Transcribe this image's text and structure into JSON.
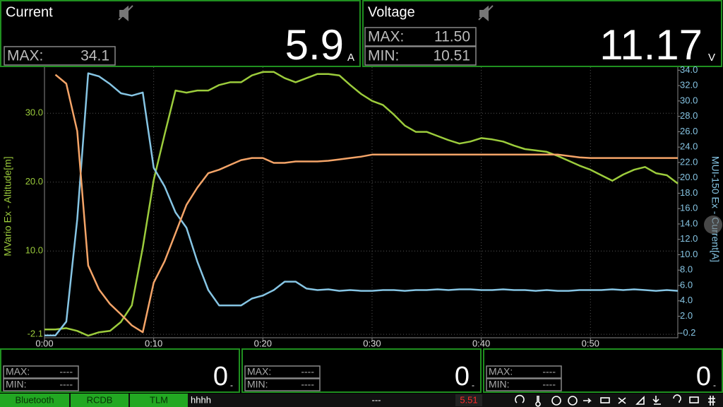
{
  "top_panels": [
    {
      "title": "Current",
      "max_label": "MAX:",
      "max": "34.1",
      "value": "5.9",
      "unit": "A"
    },
    {
      "title": "Voltage",
      "max_label": "MAX:",
      "max": "11.50",
      "min_label": "MIN:",
      "min": "10.51",
      "value": "11.17",
      "unit": "V"
    }
  ],
  "chart_data": {
    "type": "line",
    "y_label": "MVario Ex - Altitude[m]",
    "y2_label": "MUI-150 Ex - Current[A]",
    "x": [
      0,
      1,
      2,
      3,
      4,
      5,
      6,
      7,
      8,
      9,
      10,
      11,
      12,
      13,
      14,
      15,
      16,
      17,
      18,
      19,
      20,
      21,
      22,
      23,
      24,
      25,
      26,
      27,
      28,
      29,
      30,
      31,
      32,
      33,
      34,
      35,
      36,
      37,
      38,
      39,
      40,
      41,
      42,
      43,
      44,
      45,
      46,
      47,
      48,
      49,
      50,
      51,
      52,
      53,
      54,
      55,
      56,
      57,
      58
    ],
    "xlim": [
      0,
      58
    ],
    "xticks": [
      {
        "value": 0,
        "label": "0:00"
      },
      {
        "value": 10,
        "label": "0:10"
      },
      {
        "value": 20,
        "label": "0:20"
      },
      {
        "value": 30,
        "label": "0:30"
      },
      {
        "value": 40,
        "label": "0:40"
      },
      {
        "value": 50,
        "label": "0:50"
      }
    ],
    "ylim": [
      -2.6,
      36.7
    ],
    "yticks": [
      -2.1,
      {
        "value": 10,
        "label": "10.0"
      },
      {
        "value": 20,
        "label": "20.0"
      },
      {
        "value": 30,
        "label": "30.0"
      }
    ],
    "y2lim": [
      -0.8,
      34.4
    ],
    "y2ticks": [
      -0.2,
      {
        "value": 2,
        "label": "2.0"
      },
      {
        "value": 4,
        "label": "4.0"
      },
      {
        "value": 6,
        "label": "6.0"
      },
      {
        "value": 8,
        "label": "8.0"
      },
      {
        "value": 10,
        "label": "10.0"
      },
      {
        "value": 12,
        "label": "12.0"
      },
      {
        "value": 14,
        "label": "14.0"
      },
      {
        "value": 16,
        "label": "16.0"
      },
      {
        "value": 18,
        "label": "18.0"
      },
      {
        "value": 20,
        "label": "20.0"
      },
      {
        "value": 22,
        "label": "22.0"
      },
      {
        "value": 24,
        "label": "24.0"
      },
      {
        "value": 26,
        "label": "26.0"
      },
      {
        "value": 28,
        "label": "28.0"
      },
      {
        "value": 30,
        "label": "30.0"
      },
      {
        "value": 32,
        "label": "32.0"
      },
      {
        "value": 34,
        "label": "34.0"
      }
    ],
    "grid": true,
    "y_color": "#9ccc3c",
    "y2_color": "#86c5e4",
    "series": [
      {
        "color": "#9ccc3c",
        "axis": "y",
        "values": [
          -1.4,
          -1.4,
          -1.2,
          -1.6,
          -2.3,
          -1.8,
          -1.6,
          -0.3,
          2.1,
          10.5,
          20.3,
          26.9,
          33.3,
          33.0,
          33.3,
          33.3,
          34.1,
          34.5,
          34.5,
          35.5,
          36.0,
          36.0,
          35.1,
          34.5,
          35.1,
          35.7,
          35.7,
          35.5,
          34.1,
          32.8,
          31.8,
          31.2,
          29.8,
          28.2,
          27.3,
          27.3,
          26.7,
          26.1,
          25.6,
          25.9,
          26.4,
          26.2,
          25.9,
          25.3,
          24.8,
          24.6,
          24.4,
          23.8,
          23.1,
          22.4,
          21.8,
          21.0,
          20.2,
          21.1,
          21.8,
          22.2,
          21.3,
          21.0,
          19.8
        ]
      },
      {
        "color": "#86c5e4",
        "axis": "y2",
        "values": [
          -0.5,
          -0.5,
          1.3,
          14.6,
          33.6,
          33.2,
          32.2,
          31.0,
          30.7,
          31.1,
          21.3,
          18.9,
          15.5,
          13.5,
          9.1,
          5.4,
          3.4,
          3.4,
          3.4,
          4.3,
          4.7,
          5.4,
          6.5,
          6.5,
          5.6,
          5.4,
          5.5,
          5.3,
          5.4,
          5.3,
          5.3,
          5.4,
          5.4,
          5.3,
          5.4,
          5.4,
          5.5,
          5.4,
          5.5,
          5.5,
          5.4,
          5.4,
          5.5,
          5.4,
          5.4,
          5.3,
          5.4,
          5.3,
          5.3,
          5.4,
          5.4,
          5.4,
          5.5,
          5.4,
          5.5,
          5.4,
          5.3,
          5.4,
          5.3
        ]
      },
      {
        "color": "#f4a468",
        "axis": "y",
        "values": [
          null,
          35.6,
          34.3,
          27.4,
          7.9,
          4.4,
          2.3,
          0.8,
          -0.8,
          -1.8,
          5.4,
          8.5,
          12.6,
          16.7,
          19.2,
          21.3,
          21.8,
          22.5,
          23.2,
          23.5,
          23.5,
          22.8,
          22.8,
          23.0,
          23.0,
          23.0,
          23.1,
          23.3,
          23.5,
          23.7,
          24.0,
          24.0,
          24.0,
          24.0,
          24.0,
          24.0,
          24.0,
          24.0,
          24.0,
          24.0,
          24.0,
          24.0,
          24.0,
          24.0,
          24.0,
          24.0,
          24.0,
          24.0,
          23.8,
          23.6,
          23.5,
          23.5,
          23.5,
          23.5,
          23.5,
          23.5,
          23.5,
          23.5,
          23.5
        ]
      }
    ]
  },
  "bottom_panels": [
    {
      "max_label": "MAX:",
      "max": "----",
      "min_label": "MIN:",
      "min": "----",
      "value": "0",
      "unit": "-"
    },
    {
      "max_label": "MAX:",
      "max": "----",
      "min_label": "MIN:",
      "min": "----",
      "value": "0",
      "unit": "-"
    },
    {
      "max_label": "MAX:",
      "max": "----",
      "min_label": "MIN:",
      "min": "----",
      "value": "0",
      "unit": "-"
    }
  ],
  "status_bar": {
    "tabs": [
      "Bluetooth",
      "RCDB",
      "TLM"
    ],
    "name": "hhhh",
    "center": "---",
    "voltage": "5.51"
  }
}
